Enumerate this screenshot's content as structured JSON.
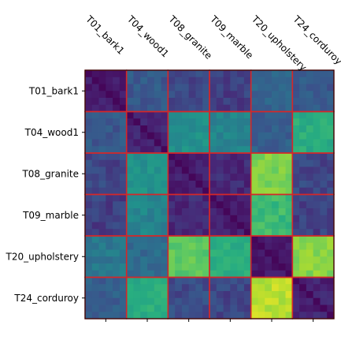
{
  "chart_data": {
    "type": "heatmap",
    "title": "",
    "xlabel": "",
    "ylabel": "",
    "colormap": "viridis",
    "value_range": [
      0,
      1
    ],
    "group_size": 6,
    "categories": [
      "T01_bark1",
      "T04_wood1",
      "T08_granite",
      "T09_marble",
      "T20_upholstery",
      "T24_corduroy"
    ],
    "x_tick_position": "top",
    "block_border_color": "#d62728",
    "block_values": [
      [
        0.1,
        0.28,
        0.22,
        0.2,
        0.32,
        0.28
      ],
      [
        0.28,
        0.12,
        0.5,
        0.45,
        0.3,
        0.62
      ],
      [
        0.22,
        0.5,
        0.1,
        0.14,
        0.8,
        0.22
      ],
      [
        0.2,
        0.45,
        0.14,
        0.1,
        0.68,
        0.2
      ],
      [
        0.4,
        0.35,
        0.75,
        0.62,
        0.08,
        0.82
      ],
      [
        0.3,
        0.62,
        0.24,
        0.22,
        0.9,
        0.12
      ]
    ],
    "within_block_min": 0.02
  }
}
